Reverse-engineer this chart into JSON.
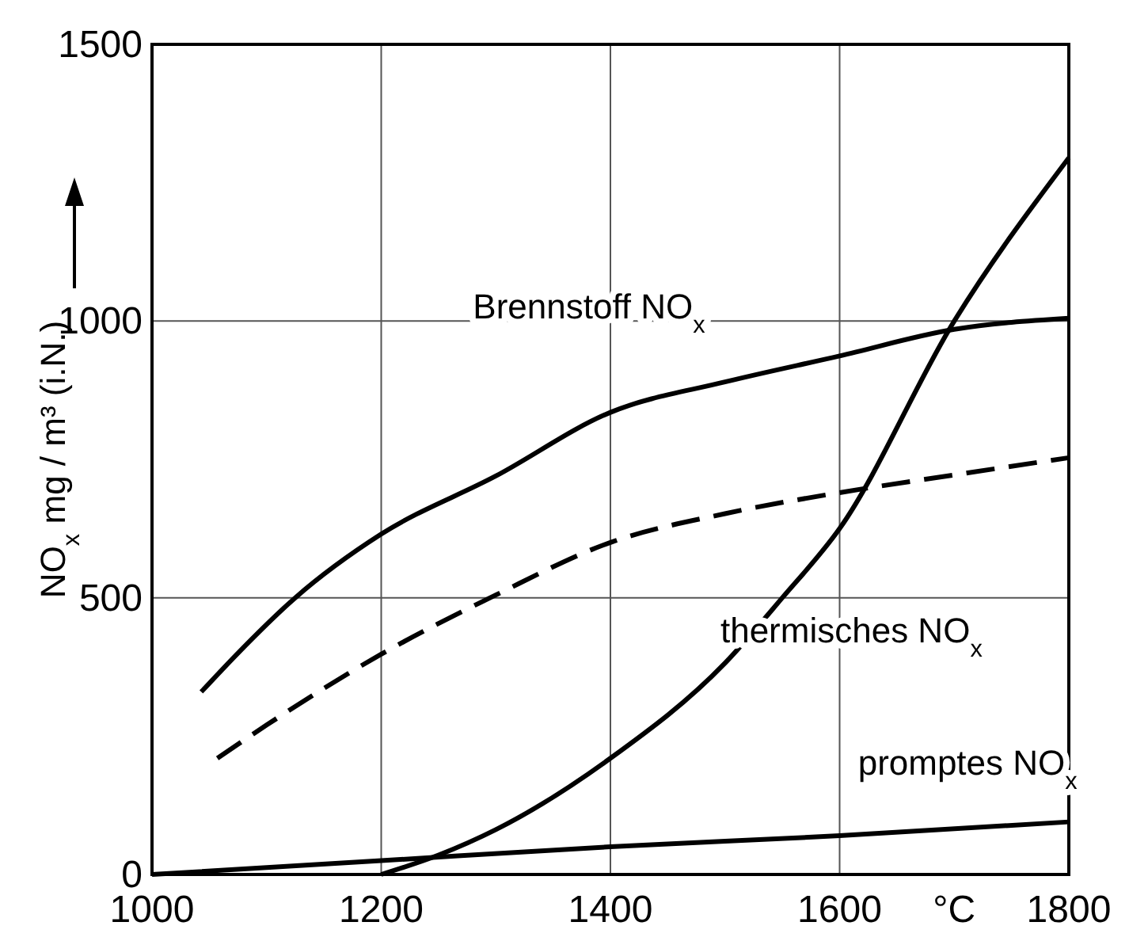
{
  "chart_data": {
    "type": "line",
    "xlabel": "°C",
    "ylabel": "NO$_{x}$  mg / m³ (i.N.)",
    "xlim": [
      1000,
      1800
    ],
    "xticks": [
      1000,
      1200,
      1400,
      1600,
      1800
    ],
    "ylim": [
      0,
      1500
    ],
    "yticks": [
      0,
      500,
      1000,
      1500
    ],
    "grid": true,
    "marker": "none",
    "series": [
      {
        "name": "Brennstoff NO$_{x}$",
        "color": "#000000",
        "line_style": "solid",
        "x": [
          1043,
          1075,
          1125,
          1200,
          1300,
          1400,
          1500,
          1600,
          1700,
          1800
        ],
        "values": [
          330,
          400,
          500,
          615,
          720,
          835,
          890,
          937,
          985,
          1005
        ]
      },
      {
        "color": "#000000",
        "line_style": "dashed",
        "x": [
          1057,
          1100,
          1200,
          1300,
          1400,
          1500,
          1600,
          1700,
          1800
        ],
        "values": [
          210,
          270,
          398,
          505,
          600,
          652,
          690,
          722,
          753
        ]
      },
      {
        "name": "thermisches NO$_{x}$",
        "color": "#000000",
        "line_style": "solid",
        "x": [
          1200,
          1250,
          1300,
          1400,
          1500,
          1550,
          1600,
          1700,
          1800
        ],
        "values": [
          0,
          35,
          81,
          210,
          382,
          500,
          625,
          1000,
          1295
        ]
      },
      {
        "name": "promptes NO$_{x}$",
        "color": "#000000",
        "line_style": "solid",
        "x": [
          1000,
          1200,
          1400,
          1600,
          1800
        ],
        "values": [
          0,
          25,
          50,
          70,
          95
        ]
      }
    ]
  }
}
